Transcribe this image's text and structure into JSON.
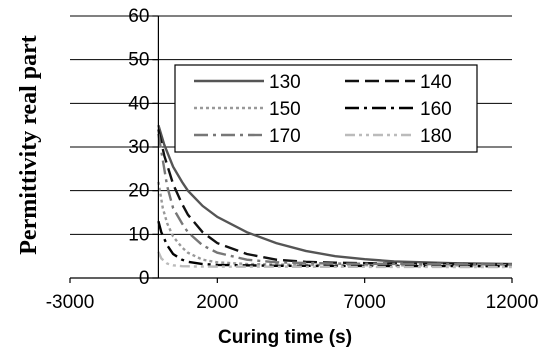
{
  "chart_data": {
    "type": "line",
    "xlabel": "Curing time (s)",
    "ylabel": "Permittivity real part",
    "xlim": [
      -3000,
      12000
    ],
    "ylim": [
      0,
      60
    ],
    "x_ticks": [
      -3000,
      2000,
      7000,
      12000
    ],
    "y_ticks": [
      0,
      10,
      20,
      30,
      40,
      50,
      60
    ],
    "grid": "horizontal",
    "legend_position": "upper-right",
    "series": [
      {
        "name": "130",
        "color": "#555555",
        "dash": "solid",
        "points": [
          [
            0,
            35
          ],
          [
            200,
            30.5
          ],
          [
            500,
            25.5
          ],
          [
            800,
            22
          ],
          [
            1000,
            20
          ],
          [
            1500,
            16.5
          ],
          [
            2000,
            14
          ],
          [
            3000,
            10.5
          ],
          [
            4000,
            8
          ],
          [
            5000,
            6.2
          ],
          [
            6000,
            5
          ],
          [
            7000,
            4.3
          ],
          [
            8000,
            3.8
          ],
          [
            9000,
            3.6
          ],
          [
            10000,
            3.4
          ],
          [
            11000,
            3.3
          ],
          [
            12000,
            3.2
          ]
        ]
      },
      {
        "name": "140",
        "color": "#111111",
        "dash": "long-dash",
        "points": [
          [
            0,
            34
          ],
          [
            200,
            28
          ],
          [
            500,
            21.5
          ],
          [
            800,
            17
          ],
          [
            1000,
            14.5
          ],
          [
            1500,
            10.5
          ],
          [
            2000,
            8
          ],
          [
            3000,
            5.5
          ],
          [
            4000,
            4.2
          ],
          [
            5000,
            3.7
          ],
          [
            6000,
            3.5
          ],
          [
            8000,
            3.3
          ],
          [
            10000,
            3.2
          ],
          [
            12000,
            3.1
          ]
        ]
      },
      {
        "name": "150",
        "color": "#999999",
        "dash": "dot",
        "points": [
          [
            0,
            22
          ],
          [
            150,
            16
          ],
          [
            300,
            12.5
          ],
          [
            500,
            9.5
          ],
          [
            800,
            7
          ],
          [
            1000,
            5.8
          ],
          [
            1500,
            4.2
          ],
          [
            2000,
            3.6
          ],
          [
            3000,
            3.2
          ],
          [
            5000,
            3
          ],
          [
            8000,
            2.9
          ],
          [
            12000,
            2.9
          ]
        ]
      },
      {
        "name": "160",
        "color": "#000000",
        "dash": "dash-dot",
        "points": [
          [
            0,
            13
          ],
          [
            100,
            10.5
          ],
          [
            300,
            7.5
          ],
          [
            500,
            5.5
          ],
          [
            800,
            4.2
          ],
          [
            1000,
            3.7
          ],
          [
            1500,
            3.2
          ],
          [
            2000,
            3
          ],
          [
            4000,
            2.8
          ],
          [
            12000,
            2.7
          ]
        ]
      },
      {
        "name": "170",
        "color": "#777777",
        "dash": "dash-dot",
        "points": [
          [
            0,
            33
          ],
          [
            150,
            27
          ],
          [
            300,
            21
          ],
          [
            500,
            16
          ],
          [
            800,
            12.5
          ],
          [
            1000,
            10.5
          ],
          [
            1500,
            7.5
          ],
          [
            2000,
            5.8
          ],
          [
            3000,
            4.2
          ],
          [
            4000,
            3.6
          ],
          [
            6000,
            3.3
          ],
          [
            12000,
            3.1
          ]
        ]
      },
      {
        "name": "180",
        "color": "#bbbbbb",
        "dash": "dash-dot-dot",
        "points": [
          [
            0,
            6
          ],
          [
            100,
            4.5
          ],
          [
            300,
            3.3
          ],
          [
            500,
            2.9
          ],
          [
            800,
            2.7
          ],
          [
            1500,
            2.6
          ],
          [
            12000,
            2.5
          ]
        ]
      }
    ]
  }
}
